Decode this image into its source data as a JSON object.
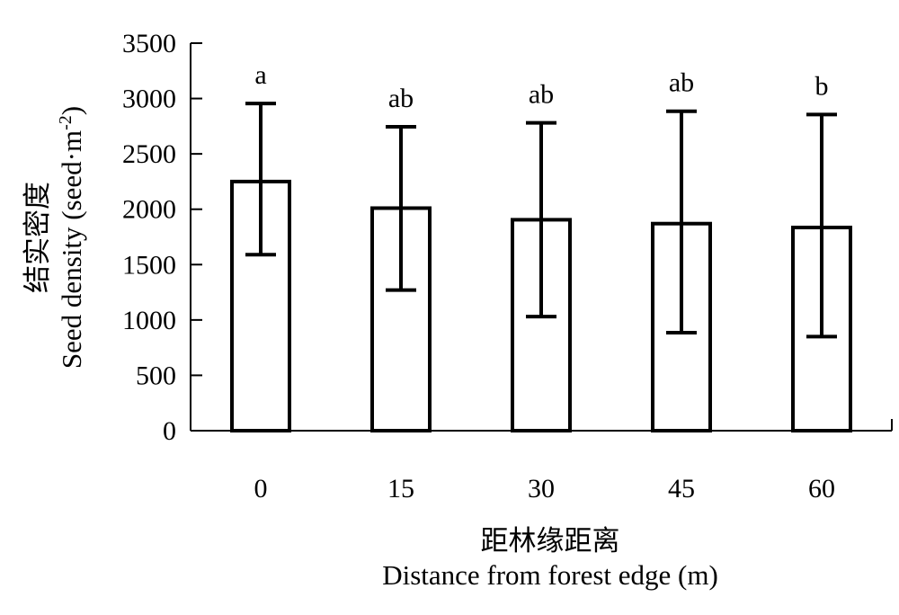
{
  "chart_data": {
    "type": "bar",
    "categories": [
      "0",
      "15",
      "30",
      "45",
      "60"
    ],
    "values": [
      2250,
      2010,
      1905,
      1870,
      1835
    ],
    "error_upper": [
      2955,
      2745,
      2780,
      2885,
      2855
    ],
    "error_lower": [
      1590,
      1270,
      1030,
      885,
      850
    ],
    "significance": [
      "a",
      "ab",
      "ab",
      "ab",
      "b"
    ],
    "ylim": [
      0,
      3500
    ],
    "yticks": [
      "0",
      "500",
      "1000",
      "1500",
      "2000",
      "2500",
      "3000",
      "3500"
    ],
    "xlabel_cn": "距林缘距离",
    "xlabel_en": "Distance from forest edge (m)",
    "ylabel_cn": "结实密度",
    "ylabel_en": "Seed density (seed·m",
    "ylabel_sup": "-2",
    "ylabel_close": ")",
    "grid": false,
    "legend": "none"
  }
}
